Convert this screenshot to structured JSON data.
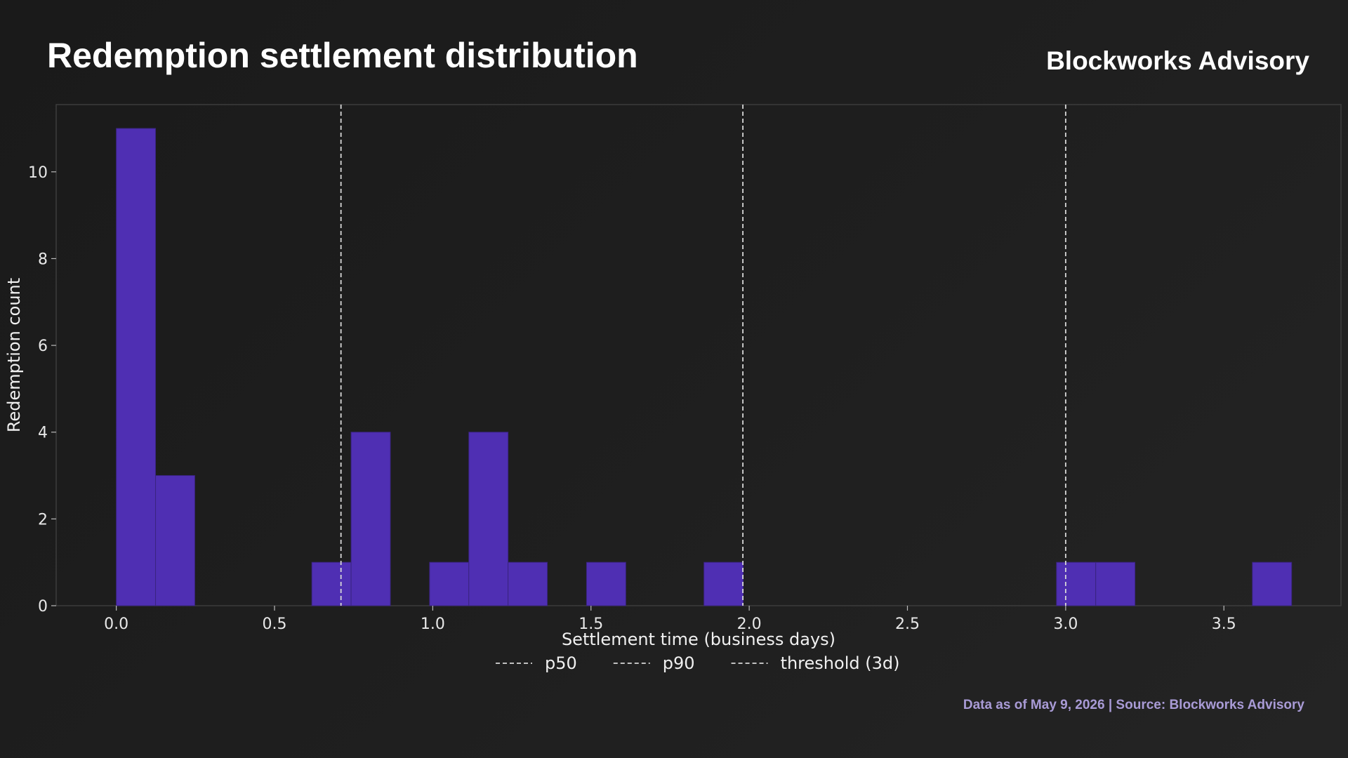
{
  "header": {
    "title": "Redemption settlement distribution",
    "brand": "Blockworks Advisory"
  },
  "footer": {
    "note": "Data as of May 9, 2026 | Source: Blockworks Advisory"
  },
  "colors": {
    "bar_fill": "#4f2fb3",
    "bar_edge": "#3a2480",
    "ref_line": "#d8d8d8",
    "frame": "#3c3c3c",
    "footnote": "#a99bd6"
  },
  "chart_data": {
    "type": "bar",
    "subtype": "histogram",
    "xlabel": "Settlement time (business days)",
    "ylabel": "Redemption count",
    "xlim": [
      -0.19,
      3.87
    ],
    "ylim": [
      0,
      11.55
    ],
    "xticks": [
      0.0,
      0.5,
      1.0,
      1.5,
      2.0,
      2.5,
      3.0,
      3.5
    ],
    "xtick_labels": [
      "0.0",
      "0.5",
      "1.0",
      "1.5",
      "2.0",
      "2.5",
      "3.0",
      "3.5"
    ],
    "yticks": [
      0,
      2,
      4,
      6,
      8,
      10
    ],
    "ytick_labels": [
      "0",
      "2",
      "4",
      "6",
      "8",
      "10"
    ],
    "bin_width": 0.124,
    "bins": [
      {
        "x0": 0.0,
        "count": 11
      },
      {
        "x0": 0.124,
        "count": 3
      },
      {
        "x0": 0.618,
        "count": 1
      },
      {
        "x0": 0.742,
        "count": 4
      },
      {
        "x0": 0.99,
        "count": 1
      },
      {
        "x0": 1.114,
        "count": 4
      },
      {
        "x0": 1.238,
        "count": 1
      },
      {
        "x0": 1.486,
        "count": 1
      },
      {
        "x0": 1.857,
        "count": 1
      },
      {
        "x0": 2.971,
        "count": 1
      },
      {
        "x0": 3.095,
        "count": 1
      },
      {
        "x0": 3.59,
        "count": 1
      }
    ],
    "reference_lines": [
      {
        "name": "p50",
        "x": 0.71
      },
      {
        "name": "p90",
        "x": 1.98
      },
      {
        "name": "threshold (3d)",
        "x": 3.0
      }
    ],
    "legend_position": "bottom-center",
    "grid": false
  }
}
